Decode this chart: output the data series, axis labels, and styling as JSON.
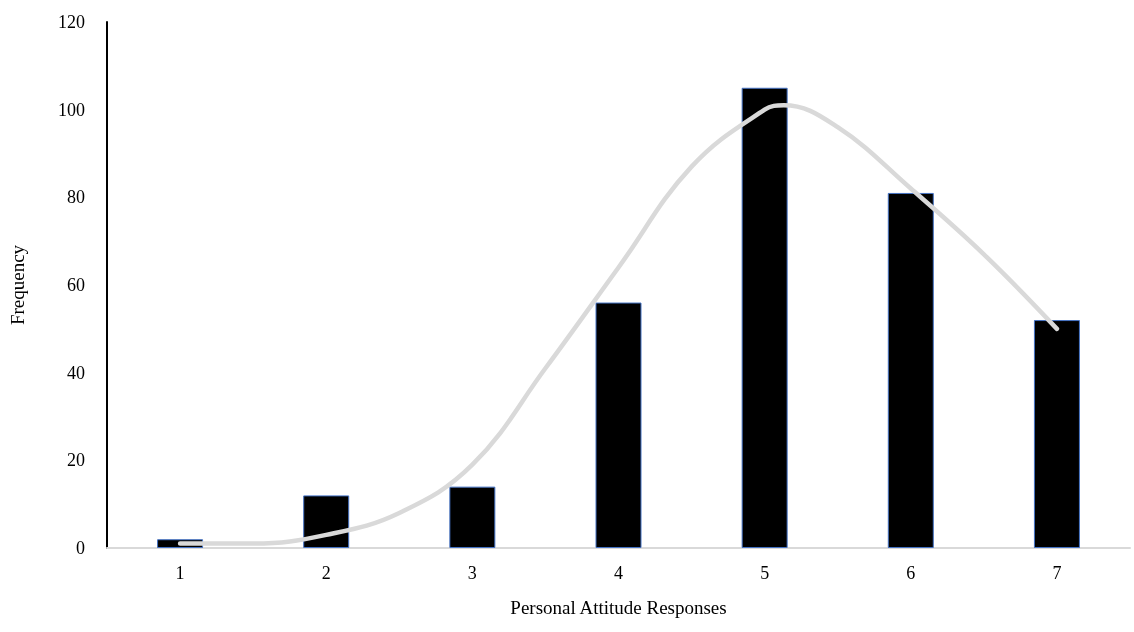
{
  "chart_data": {
    "type": "bar",
    "xlabel": "Personal Attitude Responses",
    "ylabel": "Frequency",
    "xlim": [
      0.5,
      7.5
    ],
    "xticks": [
      1,
      2,
      3,
      4,
      5,
      6,
      7
    ],
    "ylim": [
      0,
      120
    ],
    "yticks": [
      0,
      20,
      40,
      60,
      80,
      100,
      120
    ],
    "grid": false,
    "series": [
      {
        "color": "#000000",
        "x": [
          1,
          2,
          3,
          4,
          5,
          6,
          7
        ],
        "values": [
          2,
          12,
          14,
          56,
          105,
          81,
          52
        ]
      },
      {
        "type": "line",
        "color": "#d9d9d9",
        "marker": "none",
        "line_style": "solid",
        "x": [
          1,
          1.5,
          2,
          2.5,
          3,
          3.5,
          4,
          4.5,
          5,
          5.13,
          5.5,
          6,
          6.5,
          7
        ],
        "values": [
          1,
          1,
          3,
          8,
          19,
          41,
          64,
          87,
          100,
          101,
          96,
          82,
          67,
          50
        ]
      }
    ]
  }
}
